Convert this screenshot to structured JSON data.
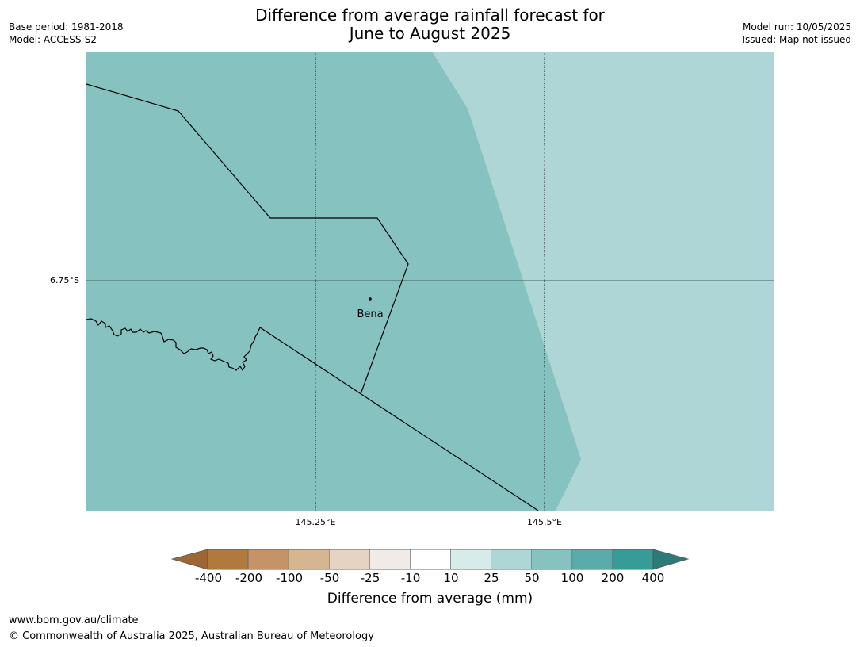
{
  "title": {
    "line1": "Difference from average rainfall forecast for",
    "line2": "June to August 2025"
  },
  "meta": {
    "base_period": "Base period: 1981-2018",
    "model": "Model: ACCESS-S2",
    "model_run": "Model run: 10/05/2025",
    "issued": "Issued: Map not issued"
  },
  "map": {
    "place_name": "Bena",
    "lat_label": "6.75°S",
    "lon_labels": [
      "145.25°E",
      "145.5°E"
    ],
    "colors": {
      "region_west": "#86c2c0",
      "region_east": "#aed6d6",
      "boundary": "#000000",
      "graticule": "#000000",
      "parallel": "#3f6462"
    }
  },
  "legend": {
    "title": "Difference from average (mm)",
    "ticks": [
      "-400",
      "-200",
      "-100",
      "-50",
      "-25",
      "-10",
      "10",
      "25",
      "50",
      "100",
      "200",
      "400"
    ],
    "colors": [
      "#9e6632",
      "#b07a3f",
      "#c49468",
      "#d6b593",
      "#e6d3c2",
      "#f0ebe7",
      "#ffffff",
      "#d7ebeb",
      "#aed6d6",
      "#86c2c0",
      "#5cabab",
      "#369c98",
      "#2d7b78"
    ]
  },
  "footer": {
    "url": "www.bom.gov.au/climate",
    "copyright": "© Commonwealth of Australia 2025, Australian Bureau of Meteorology"
  }
}
